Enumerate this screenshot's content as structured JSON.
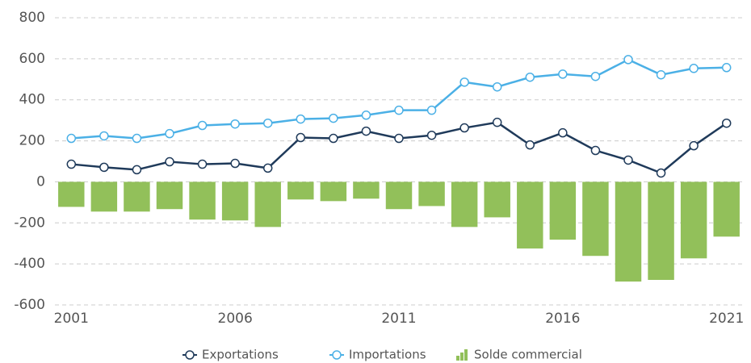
{
  "chart_data": {
    "type": "combo",
    "x": [
      2001,
      2002,
      2003,
      2004,
      2005,
      2006,
      2007,
      2008,
      2009,
      2010,
      2011,
      2012,
      2013,
      2014,
      2015,
      2016,
      2017,
      2018,
      2019,
      2020,
      2021
    ],
    "xlim": [
      2000.5,
      2021.5
    ],
    "xticks": [
      2001,
      2006,
      2011,
      2016,
      2021
    ],
    "ylim": [
      -600,
      800
    ],
    "yticks": [
      -600,
      -400,
      -200,
      0,
      200,
      400,
      600,
      800
    ],
    "grid": true,
    "legend": "bottom",
    "series": [
      {
        "name": "Exportations",
        "type": "line",
        "color": "#1f3a5a",
        "values": [
          86,
          71,
          59,
          98,
          86,
          90,
          67,
          216,
          212,
          247,
          212,
          227,
          263,
          290,
          180,
          239,
          153,
          106,
          43,
          176,
          286
        ]
      },
      {
        "name": "Importations",
        "type": "line",
        "color": "#4bb0e6",
        "values": [
          212,
          224,
          212,
          235,
          275,
          282,
          286,
          306,
          310,
          325,
          349,
          349,
          486,
          463,
          510,
          525,
          514,
          596,
          522,
          553,
          557
        ]
      },
      {
        "name": "Solde commercial",
        "type": "bar",
        "color": "#92c05a",
        "values": [
          -122,
          -145,
          -145,
          -133,
          -184,
          -188,
          -220,
          -86,
          -94,
          -82,
          -133,
          -118,
          -220,
          -173,
          -325,
          -282,
          -361,
          -486,
          -478,
          -373,
          -267
        ]
      }
    ]
  }
}
